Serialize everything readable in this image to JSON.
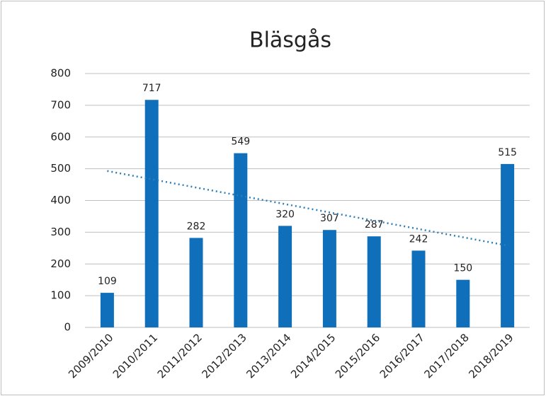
{
  "chart_data": {
    "type": "bar",
    "title": "Bläsgås",
    "categories": [
      "2009/2010",
      "2010/2011",
      "2011/2012",
      "2012/2013",
      "2013/2014",
      "2014/2015",
      "2015/2016",
      "2016/2017",
      "2017/2018",
      "2018/2019"
    ],
    "values": [
      109,
      717,
      282,
      549,
      320,
      307,
      287,
      242,
      150,
      515
    ],
    "color": "#0f6fba",
    "ylim": [
      0,
      800
    ],
    "yticks": [
      0,
      100,
      200,
      300,
      400,
      500,
      600,
      700,
      800
    ],
    "grid": true,
    "trendline": {
      "start": 493,
      "end": 258,
      "color": "#2e7fb8"
    }
  }
}
